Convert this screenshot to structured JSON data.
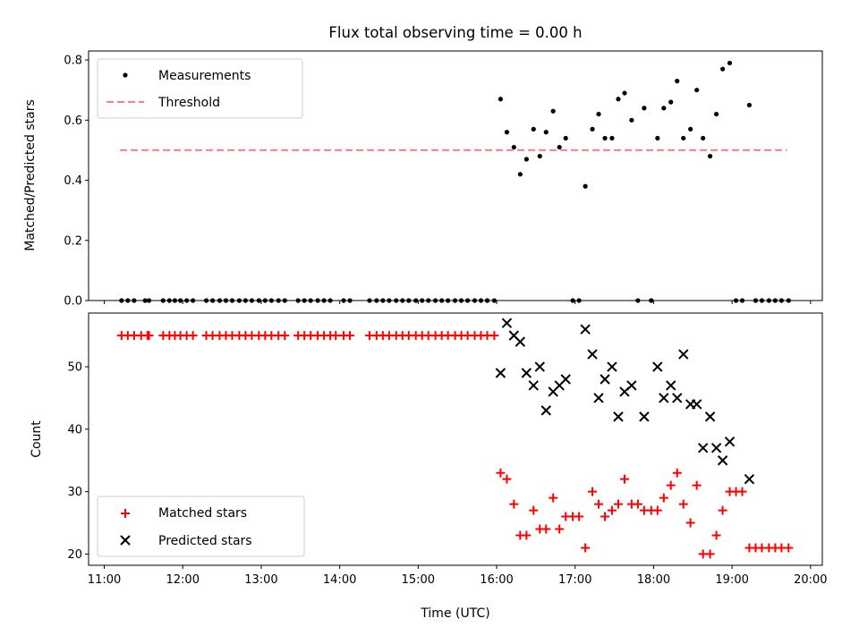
{
  "chart_data": {
    "title": "Flux total observing time = 0.00 h",
    "xlabel": "Time (UTC)",
    "x_ticks": [
      "11:00",
      "12:00",
      "13:00",
      "14:00",
      "15:00",
      "16:00",
      "17:00",
      "18:00",
      "19:00",
      "20:00"
    ],
    "xlim_hours": [
      10.8,
      20.15
    ],
    "panels": [
      {
        "id": "top",
        "type": "scatter",
        "ylabel": "Matched/Predicted stars",
        "ylim": [
          0,
          0.83
        ],
        "y_ticks": [
          "0.0",
          "0.2",
          "0.4",
          "0.6",
          "0.8"
        ],
        "legend_position": "upper-left",
        "threshold": {
          "name": "Threshold",
          "value": 0.5,
          "x_range": [
            11.2,
            19.7
          ],
          "color": "#ff7f7f"
        },
        "series": [
          {
            "name": "Measurements",
            "color": "#000000",
            "marker": "dot",
            "x": [
              11.22,
              11.3,
              11.38,
              11.52,
              11.57,
              11.75,
              11.83,
              11.9,
              11.97,
              12.05,
              12.13,
              12.3,
              12.38,
              12.47,
              12.55,
              12.63,
              12.72,
              12.8,
              12.88,
              12.97,
              13.05,
              13.13,
              13.22,
              13.3,
              13.47,
              13.55,
              13.63,
              13.72,
              13.8,
              13.88,
              14.05,
              14.13,
              14.38,
              14.47,
              14.55,
              14.63,
              14.72,
              14.8,
              14.88,
              14.97,
              15.05,
              15.13,
              15.22,
              15.3,
              15.38,
              15.47,
              15.55,
              15.63,
              15.72,
              15.8,
              15.88,
              15.97,
              16.05,
              16.13,
              16.22,
              16.3,
              16.38,
              16.47,
              16.55,
              16.63,
              16.72,
              16.8,
              16.88,
              16.97,
              17.05,
              17.13,
              17.22,
              17.3,
              17.38,
              17.47,
              17.55,
              17.63,
              17.72,
              17.8,
              17.88,
              17.97,
              18.05,
              18.13,
              18.22,
              18.3,
              18.38,
              18.47,
              18.55,
              18.63,
              18.72,
              18.8,
              18.88,
              18.97,
              19.05,
              19.13,
              19.22,
              19.3,
              19.38,
              19.47,
              19.55,
              19.63,
              19.72
            ],
            "y": [
              0,
              0,
              0,
              0,
              0,
              0,
              0,
              0,
              0,
              0,
              0,
              0,
              0,
              0,
              0,
              0,
              0,
              0,
              0,
              0,
              0,
              0,
              0,
              0,
              0,
              0,
              0,
              0,
              0,
              0,
              0,
              0,
              0,
              0,
              0,
              0,
              0,
              0,
              0,
              0,
              0,
              0,
              0,
              0,
              0,
              0,
              0,
              0,
              0,
              0,
              0,
              0,
              0.67,
              0.56,
              0.51,
              0.42,
              0.47,
              0.57,
              0.48,
              0.56,
              0.63,
              0.51,
              0.54,
              0,
              0,
              0.38,
              0.57,
              0.62,
              0.54,
              0.54,
              0.67,
              0.69,
              0.6,
              0,
              0.64,
              0,
              0.54,
              0.64,
              0.66,
              0.73,
              0.54,
              0.57,
              0.7,
              0.54,
              0.48,
              0.62,
              0.77,
              0.79,
              0,
              0,
              0.65,
              0,
              0,
              0,
              0,
              0,
              0
            ]
          }
        ]
      },
      {
        "id": "bottom",
        "type": "scatter",
        "ylabel": "Count",
        "ylim": [
          18.2,
          58.6
        ],
        "y_ticks": [
          "20",
          "30",
          "40",
          "50"
        ],
        "legend_position": "lower-left",
        "series": [
          {
            "name": "Matched stars",
            "color": "#ff0000",
            "marker": "plus",
            "x": [
              11.22,
              11.3,
              11.38,
              11.47,
              11.55,
              11.57,
              11.75,
              11.83,
              11.9,
              11.97,
              12.05,
              12.13,
              12.3,
              12.38,
              12.47,
              12.55,
              12.63,
              12.72,
              12.8,
              12.88,
              12.97,
              13.05,
              13.13,
              13.22,
              13.3,
              13.47,
              13.55,
              13.63,
              13.72,
              13.8,
              13.88,
              13.95,
              14.05,
              14.13,
              14.38,
              14.47,
              14.55,
              14.63,
              14.72,
              14.8,
              14.88,
              14.97,
              15.05,
              15.13,
              15.22,
              15.3,
              15.38,
              15.47,
              15.55,
              15.63,
              15.72,
              15.8,
              15.88,
              15.97,
              16.05,
              16.13,
              16.22,
              16.3,
              16.38,
              16.47,
              16.55,
              16.63,
              16.72,
              16.8,
              16.88,
              16.97,
              17.05,
              17.13,
              17.22,
              17.3,
              17.38,
              17.47,
              17.55,
              17.63,
              17.72,
              17.8,
              17.88,
              17.97,
              18.05,
              18.13,
              18.22,
              18.3,
              18.38,
              18.47,
              18.55,
              18.63,
              18.72,
              18.8,
              18.88,
              18.97,
              19.05,
              19.13,
              19.22,
              19.3,
              19.38,
              19.47,
              19.55,
              19.63,
              19.72
            ],
            "y": [
              55,
              55,
              55,
              55,
              55,
              55,
              55,
              55,
              55,
              55,
              55,
              55,
              55,
              55,
              55,
              55,
              55,
              55,
              55,
              55,
              55,
              55,
              55,
              55,
              55,
              55,
              55,
              55,
              55,
              55,
              55,
              55,
              55,
              55,
              55,
              55,
              55,
              55,
              55,
              55,
              55,
              55,
              55,
              55,
              55,
              55,
              55,
              55,
              55,
              55,
              55,
              55,
              55,
              55,
              33,
              32,
              28,
              23,
              23,
              27,
              24,
              24,
              29,
              24,
              26,
              26,
              26,
              21,
              30,
              28,
              26,
              27,
              28,
              32,
              28,
              28,
              27,
              27,
              27,
              29,
              31,
              33,
              28,
              25,
              31,
              20,
              20,
              23,
              27,
              30,
              30,
              30,
              21,
              21,
              21,
              21,
              21,
              21,
              21
            ]
          },
          {
            "name": "Predicted stars",
            "color": "#000000",
            "marker": "x",
            "x": [
              16.05,
              16.13,
              16.22,
              16.3,
              16.38,
              16.47,
              16.55,
              16.63,
              16.72,
              16.8,
              16.88,
              17.13,
              17.22,
              17.3,
              17.38,
              17.47,
              17.55,
              17.63,
              17.72,
              17.88,
              18.05,
              18.13,
              18.22,
              18.3,
              18.38,
              18.47,
              18.55,
              18.63,
              18.72,
              18.8,
              18.88,
              18.97,
              19.22
            ],
            "y": [
              49,
              57,
              55,
              54,
              49,
              47,
              50,
              43,
              46,
              47,
              48,
              56,
              52,
              45,
              48,
              50,
              42,
              46,
              47,
              42,
              50,
              45,
              47,
              45,
              52,
              44,
              44,
              37,
              42,
              37,
              35,
              38,
              32
            ]
          }
        ]
      }
    ]
  }
}
